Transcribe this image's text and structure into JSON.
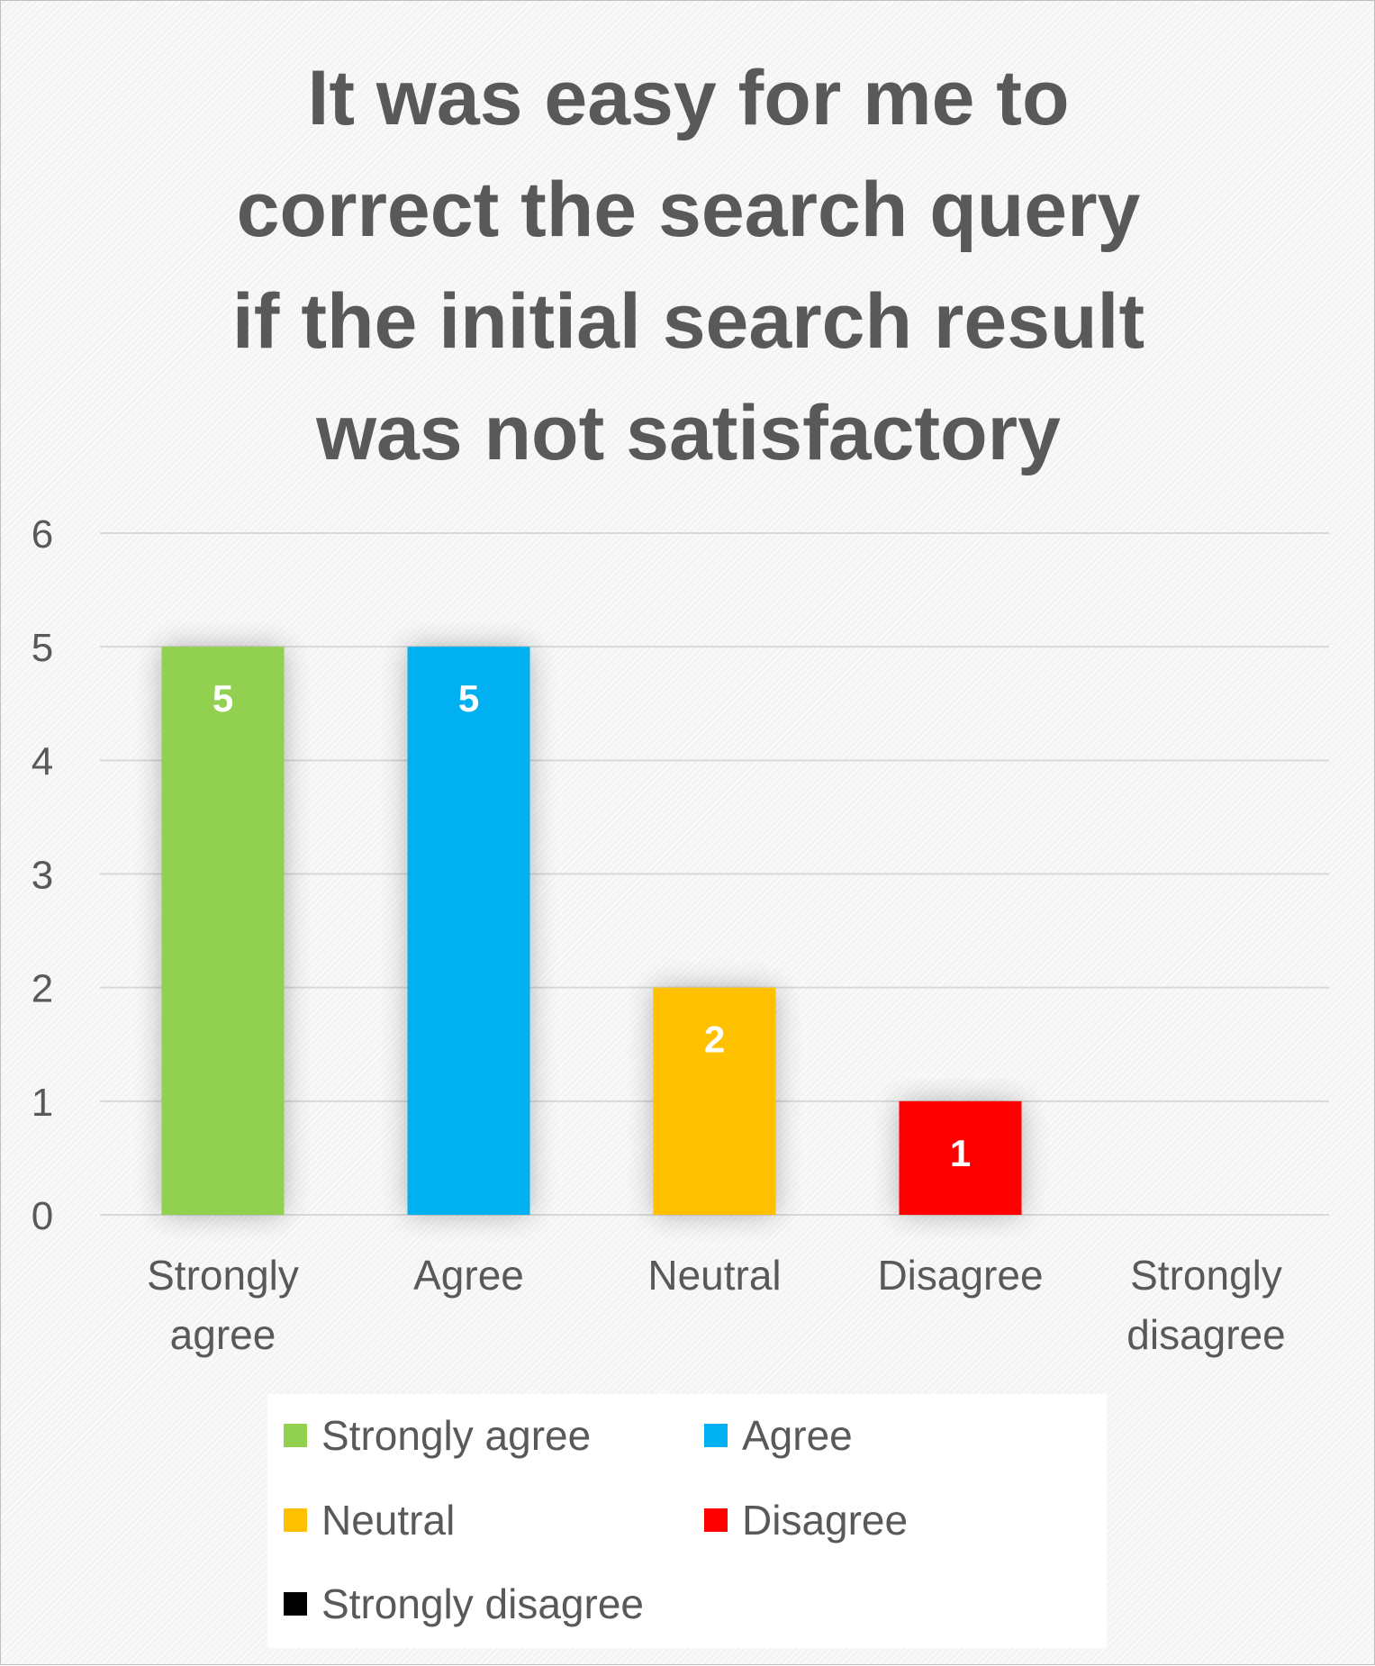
{
  "chart_data": {
    "type": "bar",
    "title_lines": [
      "It was easy for me to",
      "correct the search query",
      "if the initial search result",
      "was not satisfactory"
    ],
    "categories": [
      [
        "Strongly",
        "agree"
      ],
      [
        "Agree"
      ],
      [
        "Neutral"
      ],
      [
        "Disagree"
      ],
      [
        "Strongly",
        "disagree"
      ]
    ],
    "values": [
      5,
      5,
      2,
      1,
      0
    ],
    "data_labels": [
      "5",
      "5",
      "2",
      "1",
      ""
    ],
    "colors": [
      "#92d050",
      "#00b0f0",
      "#ffc000",
      "#ff0000",
      "#000000"
    ],
    "yticks": [
      "0",
      "1",
      "2",
      "3",
      "4",
      "5",
      "6"
    ],
    "ylim": [
      0,
      6
    ],
    "grid": true,
    "legend_position": "bottom",
    "legend": [
      {
        "label": "Strongly agree",
        "color": "#92d050"
      },
      {
        "label": "Agree",
        "color": "#00b0f0"
      },
      {
        "label": "Neutral",
        "color": "#ffc000"
      },
      {
        "label": "Disagree",
        "color": "#ff0000"
      },
      {
        "label": "Strongly disagree",
        "color": "#000000"
      }
    ]
  }
}
